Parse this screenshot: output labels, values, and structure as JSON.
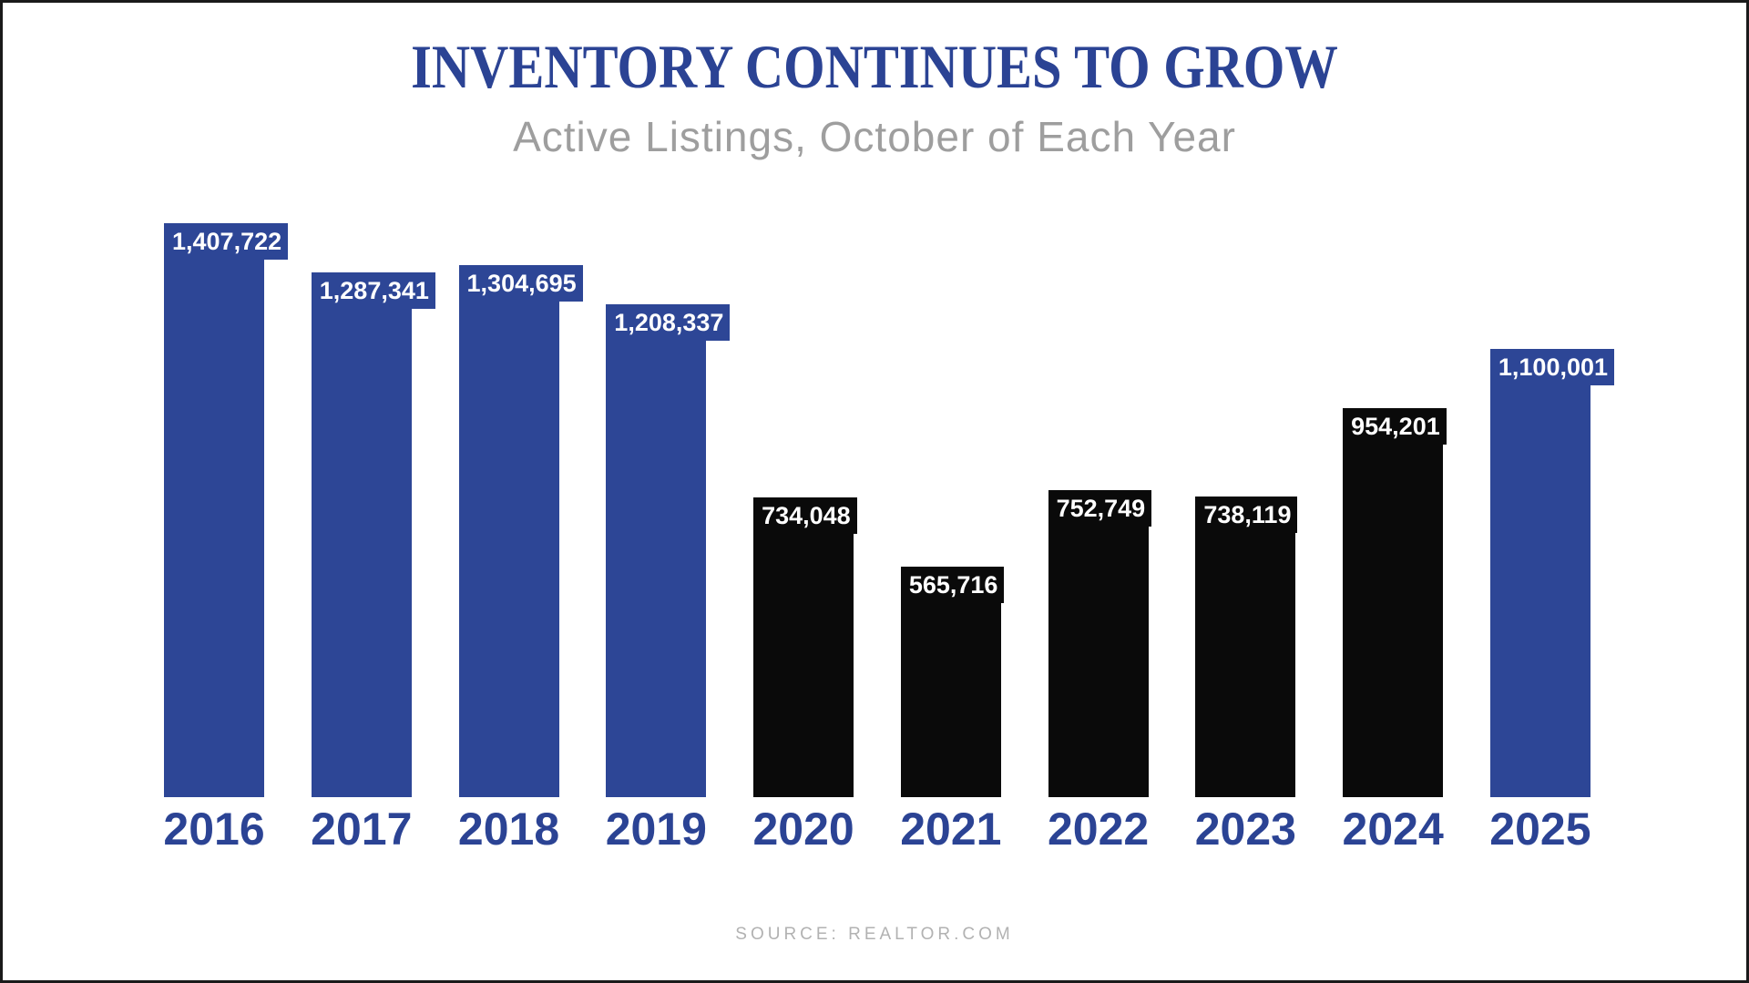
{
  "colors": {
    "accent_blue": "#2d4696",
    "title_blue": "#2b4394",
    "bar_black": "#0a0a0a",
    "subtitle_gray": "#9e9e9e",
    "source_gray": "#b2b2b2",
    "label_white": "#ffffff",
    "frame_border": "#1a1a1a"
  },
  "chart_data": {
    "type": "bar",
    "title": "INVENTORY CONTINUES TO GROW",
    "subtitle": "Active Listings, October of Each Year",
    "source": "SOURCE: REALTOR.COM",
    "categories": [
      "2016",
      "2017",
      "2018",
      "2019",
      "2020",
      "2021",
      "2022",
      "2023",
      "2024",
      "2025"
    ],
    "values": [
      1407722,
      1287341,
      1304695,
      1208337,
      734048,
      565716,
      752749,
      738119,
      954201,
      1100001
    ],
    "value_labels": [
      "1,407,722",
      "1,287,341",
      "1,304,695",
      "1,208,337",
      "734,048",
      "565,716",
      "752,749",
      "738,119",
      "954,201",
      "1,100,001"
    ],
    "bar_colors": [
      "#2d4696",
      "#2d4696",
      "#2d4696",
      "#2d4696",
      "#0a0a0a",
      "#0a0a0a",
      "#0a0a0a",
      "#0a0a0a",
      "#0a0a0a",
      "#2d4696"
    ],
    "xlabel": "",
    "ylabel": "",
    "ylim": [
      0,
      1407722
    ],
    "grid": false,
    "legend": false,
    "value_label_position": "inside-top",
    "axis_lines": false
  }
}
